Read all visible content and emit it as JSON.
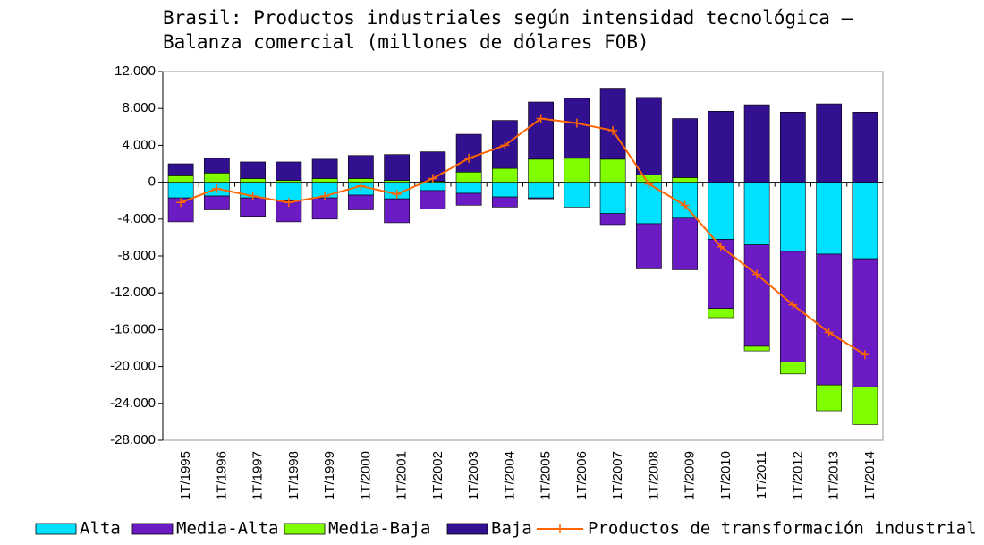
{
  "chart_data": {
    "type": "bar",
    "stacked": true,
    "title": "Brasil: Productos industriales según intensidad tecnológica –",
    "subtitle": "Balanza comercial (millones de dólares FOB)",
    "categories": [
      "1T/1995",
      "1T/1996",
      "1T/1997",
      "1T/1998",
      "1T/1999",
      "1T/2000",
      "1T/2001",
      "1T/2002",
      "1T/2003",
      "1T/2004",
      "1T/2005",
      "1T/2006",
      "1T/2007",
      "1T/2008",
      "1T/2009",
      "1T/2010",
      "1T/2011",
      "1T/2012",
      "1T/2013",
      "1T/2014"
    ],
    "series": [
      {
        "name": "Alta",
        "color": "#00e0ff",
        "values": [
          -1700,
          -1500,
          -1700,
          -2000,
          -1700,
          -1400,
          -1800,
          -900,
          -1200,
          -1600,
          -1700,
          -2700,
          -3400,
          -4500,
          -3900,
          -6200,
          -6800,
          -7500,
          -7800,
          -8300
        ]
      },
      {
        "name": "Media-Alta",
        "color": "#6a1bc4",
        "values": [
          -2600,
          -1500,
          -2000,
          -2300,
          -2300,
          -1600,
          -2600,
          -2000,
          -1300,
          -1100,
          -100,
          0,
          -1200,
          -4900,
          -5600,
          -7500,
          -11000,
          -12000,
          -14200,
          -13900
        ]
      },
      {
        "name": "Media-Baja",
        "color": "#80ff00",
        "values": [
          700,
          1000,
          400,
          200,
          400,
          400,
          200,
          100,
          1100,
          1500,
          2500,
          2600,
          2500,
          800,
          500,
          -1000,
          -500,
          -1300,
          -2800,
          -4100
        ]
      },
      {
        "name": "Baja",
        "color": "#33108f",
        "values": [
          1300,
          1600,
          1800,
          2000,
          2100,
          2500,
          2800,
          3200,
          4100,
          5200,
          6200,
          6500,
          7700,
          8400,
          6400,
          7700,
          8400,
          7600,
          8500,
          7600
        ]
      },
      {
        "name": "Productos de transformación industrial",
        "type": "line",
        "color": "#ff6600",
        "values": [
          -2200,
          -700,
          -1500,
          -2200,
          -1500,
          -400,
          -1300,
          400,
          2600,
          4000,
          6900,
          6400,
          5600,
          -200,
          -2500,
          -7000,
          -10000,
          -13300,
          -16300,
          -18700
        ]
      }
    ],
    "ylim": [
      -28000,
      12000
    ],
    "yticks": [
      {
        "value": -28000,
        "label": "-28.000"
      },
      {
        "value": -24000,
        "label": "-24.000"
      },
      {
        "value": -20000,
        "label": "-20.000"
      },
      {
        "value": -16000,
        "label": "-16.000"
      },
      {
        "value": -12000,
        "label": "-12.000"
      },
      {
        "value": -8000,
        "label": "-8.000"
      },
      {
        "value": -4000,
        "label": "-4.000"
      },
      0,
      {
        "value": 4000,
        "label": "4.000"
      },
      {
        "value": 8000,
        "label": "8.000"
      },
      {
        "value": 12000,
        "label": "12.000"
      }
    ],
    "legend": "bottom"
  }
}
